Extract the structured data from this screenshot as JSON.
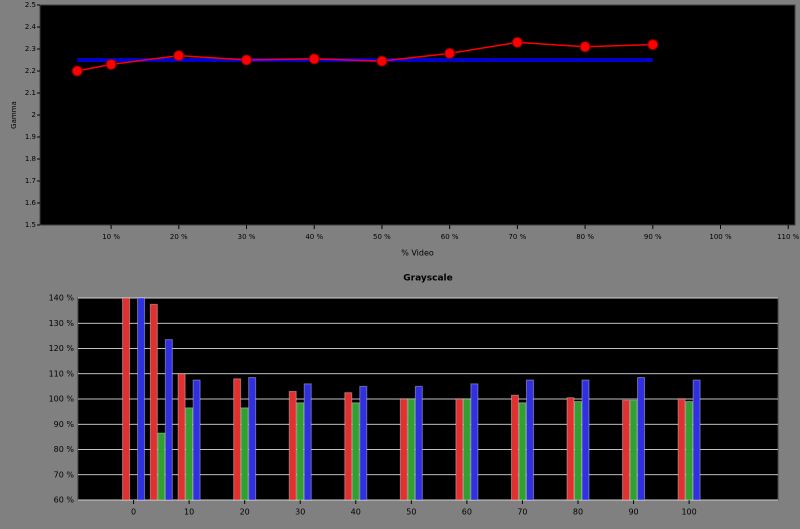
{
  "chart_data": [
    {
      "type": "line",
      "y_label": "Gamma",
      "x_label": "% Video",
      "xlim": [
        -0.5,
        111
      ],
      "ylim": [
        1.5,
        2.5
      ],
      "xticks": [
        {
          "value": 10,
          "label": "10 %"
        },
        {
          "value": 20,
          "label": "20 %"
        },
        {
          "value": 30,
          "label": "30 %"
        },
        {
          "value": 40,
          "label": "40 %"
        },
        {
          "value": 50,
          "label": "50 %"
        },
        {
          "value": 60,
          "label": "60 %"
        },
        {
          "value": 70,
          "label": "70 %"
        },
        {
          "value": 80,
          "label": "80 %"
        },
        {
          "value": 90,
          "label": "90 %"
        },
        {
          "value": 100,
          "label": "100 %"
        },
        {
          "value": 110,
          "label": "110 %"
        }
      ],
      "yticks": [
        1.5,
        1.6,
        1.7,
        1.8,
        1.9,
        2,
        2.1,
        2.2,
        2.3,
        2.4,
        2.5
      ],
      "x": [
        5,
        10,
        20,
        30,
        40,
        50,
        60,
        70,
        80,
        90
      ],
      "series": [
        {
          "color": "#0000cc",
          "values": [
            2.25,
            2.25,
            2.25,
            2.25,
            2.25,
            2.25,
            2.25,
            2.25,
            2.25,
            2.25
          ],
          "markers": false
        },
        {
          "color": "#ff0000",
          "values": [
            2.2,
            2.23,
            2.27,
            2.25,
            2.255,
            2.245,
            2.28,
            2.33,
            2.31,
            2.32
          ],
          "markers": true
        }
      ]
    },
    {
      "type": "bar",
      "title": "Grayscale",
      "xlim": [
        -10,
        116
      ],
      "ylim": [
        60,
        140
      ],
      "xticks": [
        0,
        10,
        20,
        30,
        40,
        50,
        60,
        70,
        80,
        90,
        100
      ],
      "yticks": [
        {
          "value": 60,
          "label": "60 %"
        },
        {
          "value": 70,
          "label": "70 %"
        },
        {
          "value": 80,
          "label": "80 %"
        },
        {
          "value": 90,
          "label": "90 %"
        },
        {
          "value": 100,
          "label": "100 %"
        },
        {
          "value": 110,
          "label": "110 %"
        },
        {
          "value": 120,
          "label": "120 %"
        },
        {
          "value": 130,
          "label": "130 %"
        },
        {
          "value": 140,
          "label": "140 %"
        }
      ],
      "grid": true,
      "x": [
        0,
        5,
        10,
        20,
        30,
        40,
        50,
        60,
        70,
        80,
        90,
        100
      ],
      "series": [
        {
          "color": "#e03030",
          "values": [
            140,
            137.5,
            110,
            108,
            103,
            102.5,
            100,
            100,
            101.5,
            100.5,
            99.5,
            100
          ]
        },
        {
          "color": "#30a030",
          "values": [
            null,
            86.5,
            96.5,
            96.5,
            98.5,
            98.5,
            100,
            100,
            98.5,
            99,
            99.5,
            99
          ]
        },
        {
          "color": "#3030e0",
          "values": [
            140,
            123.5,
            107.5,
            108.5,
            106,
            105,
            105,
            106,
            107.5,
            107.5,
            108.5,
            107.5
          ]
        }
      ]
    }
  ]
}
